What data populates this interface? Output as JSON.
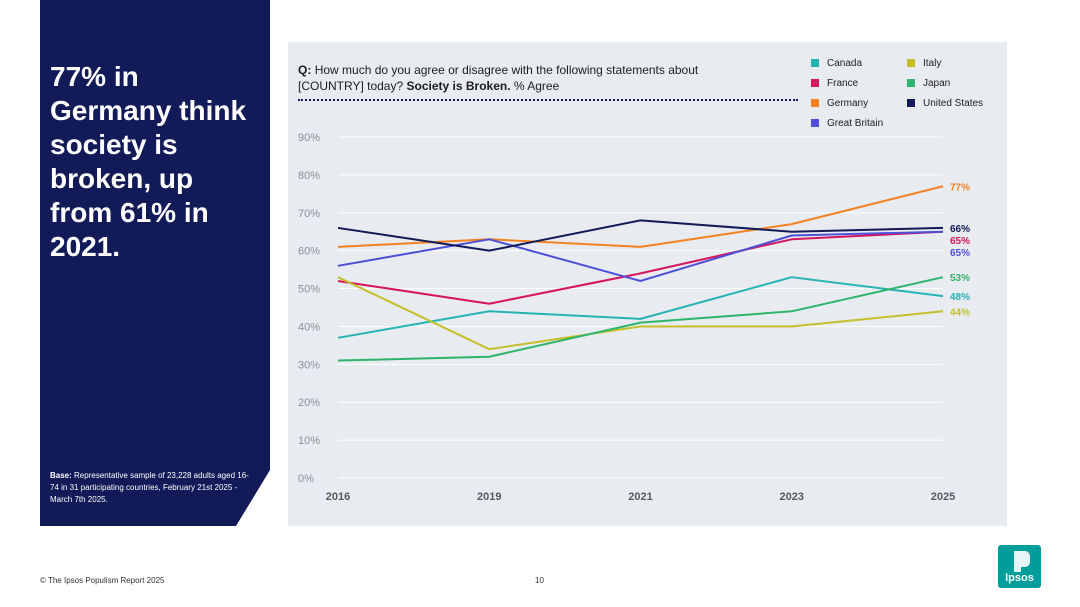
{
  "headline": "77% in Germany think society is broken, up from 61% in 2021.",
  "base": {
    "label": "Base:",
    "text": "Representative sample of 23,228 adults aged 16-74 in 31 participating countries, February 21st 2025 - March 7th 2025."
  },
  "question": {
    "prefix": "Q:",
    "text": "How much do you agree or disagree with the following statements about [COUNTRY] today?",
    "statement": "Society is Broken.",
    "suffix": "% Agree"
  },
  "footer": {
    "copyright": "© The Ipsos Populism Report 2025",
    "page": "10"
  },
  "logo": {
    "text": "Ipsos",
    "color": "#009d9d"
  },
  "chart_data": {
    "type": "line",
    "x": [
      "2016",
      "2019",
      "2021",
      "2023",
      "2025"
    ],
    "ylim": [
      0,
      90
    ],
    "yticks": [
      "0%",
      "10%",
      "20%",
      "30%",
      "40%",
      "50%",
      "60%",
      "70%",
      "80%",
      "90%"
    ],
    "grid": true,
    "legend_position": "top-right",
    "series": [
      {
        "name": "Canada",
        "color": "#26b3b3",
        "values": [
          37,
          44,
          42,
          53,
          48
        ],
        "end_label": "48%"
      },
      {
        "name": "France",
        "color": "#d6165c",
        "values": [
          52,
          46,
          54,
          63,
          65
        ],
        "end_label": "65%"
      },
      {
        "name": "Germany",
        "color": "#f58221",
        "values": [
          61,
          63,
          61,
          67,
          77
        ],
        "end_label": "77%"
      },
      {
        "name": "Great Britain",
        "color": "#4d4fd6",
        "values": [
          56,
          63,
          52,
          64,
          65
        ],
        "end_label": "65%"
      },
      {
        "name": "Italy",
        "color": "#c4bf2b",
        "values": [
          53,
          34,
          40,
          40,
          44
        ],
        "end_label": "44%"
      },
      {
        "name": "Japan",
        "color": "#2fb56b",
        "values": [
          31,
          32,
          41,
          44,
          53
        ],
        "end_label": "53%"
      },
      {
        "name": "United States",
        "color": "#121a57",
        "values": [
          66,
          60,
          68,
          65,
          66
        ],
        "end_label": "66%"
      }
    ]
  }
}
